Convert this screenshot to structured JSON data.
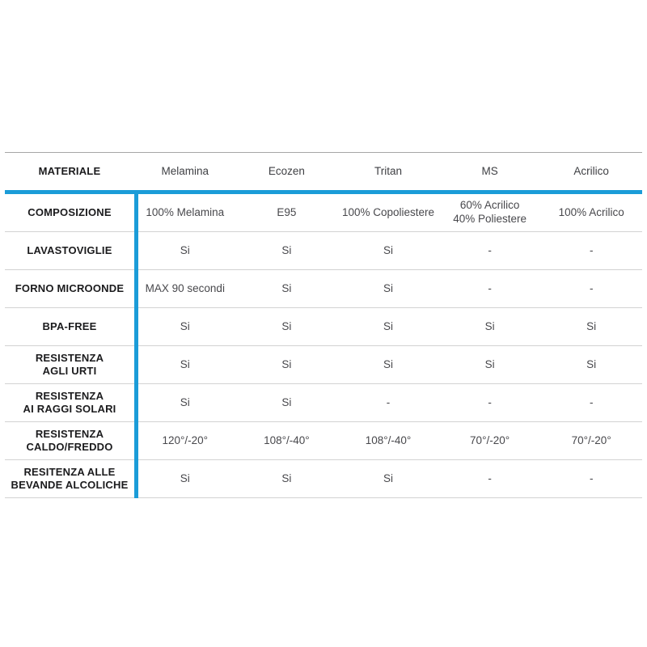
{
  "colors": {
    "accent_blue": "#1b9cd8",
    "table_top_border": "#a6a6a6",
    "row_separator": "#d2d2d2",
    "label_text": "#1b1b1d",
    "value_text": "#48484c",
    "background": "#ffffff"
  },
  "table": {
    "header": {
      "label": "MATERIALE",
      "columns": [
        "Melamina",
        "Ecozen",
        "Tritan",
        "MS",
        "Acrilico"
      ]
    },
    "rows": [
      {
        "label": "COMPOSIZIONE",
        "values": [
          "100% Melamina",
          "E95",
          "100% Copoliestere",
          "60% Acrilico\n40% Poliestere",
          "100% Acrilico"
        ]
      },
      {
        "label": "LAVASTOVIGLIE",
        "values": [
          "Si",
          "Si",
          "Si",
          "-",
          "-"
        ]
      },
      {
        "label": "FORNO MICROONDE",
        "values": [
          "MAX 90 secondi",
          "Si",
          "Si",
          "-",
          "-"
        ]
      },
      {
        "label": "BPA-FREE",
        "values": [
          "Si",
          "Si",
          "Si",
          "Si",
          "Si"
        ]
      },
      {
        "label": "RESISTENZA\nAGLI URTI",
        "values": [
          "Si",
          "Si",
          "Si",
          "Si",
          "Si"
        ]
      },
      {
        "label": "RESISTENZA\nAI RAGGI SOLARI",
        "values": [
          "Si",
          "Si",
          "-",
          "-",
          "-"
        ]
      },
      {
        "label": "RESISTENZA\nCALDO/FREDDO",
        "values": [
          "120°/-20°",
          "108°/-40°",
          "108°/-40°",
          "70°/-20°",
          "70°/-20°"
        ]
      },
      {
        "label": "RESITENZA ALLE\nBEVANDE ALCOLICHE",
        "values": [
          "Si",
          "Si",
          "Si",
          "-",
          "-"
        ]
      }
    ]
  }
}
